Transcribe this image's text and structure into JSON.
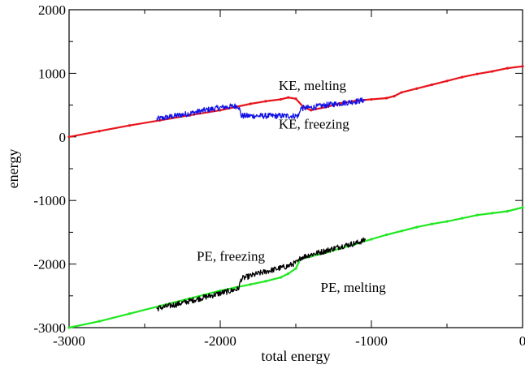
{
  "chart_data": {
    "type": "line",
    "title": "",
    "xlabel": "total energy",
    "ylabel": "energy",
    "xlim": [
      -3000,
      0
    ],
    "ylim": [
      -3000,
      2000
    ],
    "x_ticks": [
      -3000,
      -2000,
      -1000,
      0
    ],
    "x_tick_labels": [
      "-3000",
      "-2000",
      "-1000",
      "0"
    ],
    "y_ticks": [
      -3000,
      -2000,
      -1000,
      0,
      1000,
      2000
    ],
    "y_tick_labels": [
      "-3000",
      "-2000",
      "-1000",
      "0",
      "1000",
      "2000"
    ],
    "grid": false,
    "legend": "none",
    "series": [
      {
        "name": "KE, melting",
        "color": "#e8141c",
        "style": "smooth",
        "x": [
          -3000,
          -2800,
          -2600,
          -2400,
          -2200,
          -2000,
          -1900,
          -1800,
          -1700,
          -1600,
          -1550,
          -1500,
          -1450,
          -1400,
          -1300,
          -1200,
          -1100,
          -1000,
          -900,
          -850,
          -800,
          -700,
          -600,
          -500,
          -400,
          -300,
          -200,
          -100,
          0
        ],
        "y": [
          0,
          90,
          180,
          260,
          340,
          420,
          470,
          520,
          560,
          590,
          620,
          600,
          470,
          420,
          470,
          530,
          570,
          590,
          610,
          640,
          700,
          760,
          820,
          880,
          940,
          990,
          1030,
          1080,
          1110
        ]
      },
      {
        "name": "KE, freezing",
        "color": "#1010e6",
        "style": "noisy",
        "x": [
          -2420,
          -2300,
          -2200,
          -2100,
          -2000,
          -1880,
          -1860,
          -1750,
          -1650,
          -1550,
          -1480,
          -1470,
          -1400,
          -1300,
          -1200,
          -1100,
          -1040
        ],
        "y": [
          280,
          330,
          370,
          420,
          460,
          490,
          330,
          330,
          330,
          330,
          330,
          450,
          460,
          500,
          530,
          560,
          580
        ]
      },
      {
        "name": "PE, melting",
        "color": "#1ee81e",
        "style": "smooth",
        "x": [
          -3000,
          -2800,
          -2600,
          -2400,
          -2200,
          -2000,
          -1900,
          -1800,
          -1700,
          -1600,
          -1550,
          -1500,
          -1470,
          -1400,
          -1300,
          -1200,
          -1100,
          -1000,
          -900,
          -800,
          -700,
          -600,
          -500,
          -400,
          -300,
          -200,
          -100,
          0
        ],
        "y": [
          -3000,
          -2900,
          -2780,
          -2660,
          -2540,
          -2420,
          -2370,
          -2320,
          -2270,
          -2210,
          -2150,
          -2070,
          -1920,
          -1880,
          -1820,
          -1750,
          -1680,
          -1610,
          -1540,
          -1480,
          -1420,
          -1370,
          -1330,
          -1280,
          -1230,
          -1200,
          -1170,
          -1110
        ]
      },
      {
        "name": "PE, freezing",
        "color": "#000000",
        "style": "noisy",
        "x": [
          -2420,
          -2300,
          -2200,
          -2100,
          -2000,
          -1880,
          -1860,
          -1750,
          -1650,
          -1550,
          -1480,
          -1470,
          -1400,
          -1300,
          -1200,
          -1100,
          -1040
        ],
        "y": [
          -2700,
          -2640,
          -2580,
          -2520,
          -2460,
          -2390,
          -2230,
          -2150,
          -2090,
          -2030,
          -1960,
          -1900,
          -1850,
          -1790,
          -1720,
          -1670,
          -1620
        ]
      }
    ],
    "annotations": [
      {
        "text": "KE, melting",
        "x": -1390,
        "y": 740
      },
      {
        "text": "KE, freezing",
        "x": -1380,
        "y": 130
      },
      {
        "text": "PE, freezing",
        "x": -1930,
        "y": -1950
      },
      {
        "text": "PE, melting",
        "x": -1120,
        "y": -2440
      }
    ]
  }
}
